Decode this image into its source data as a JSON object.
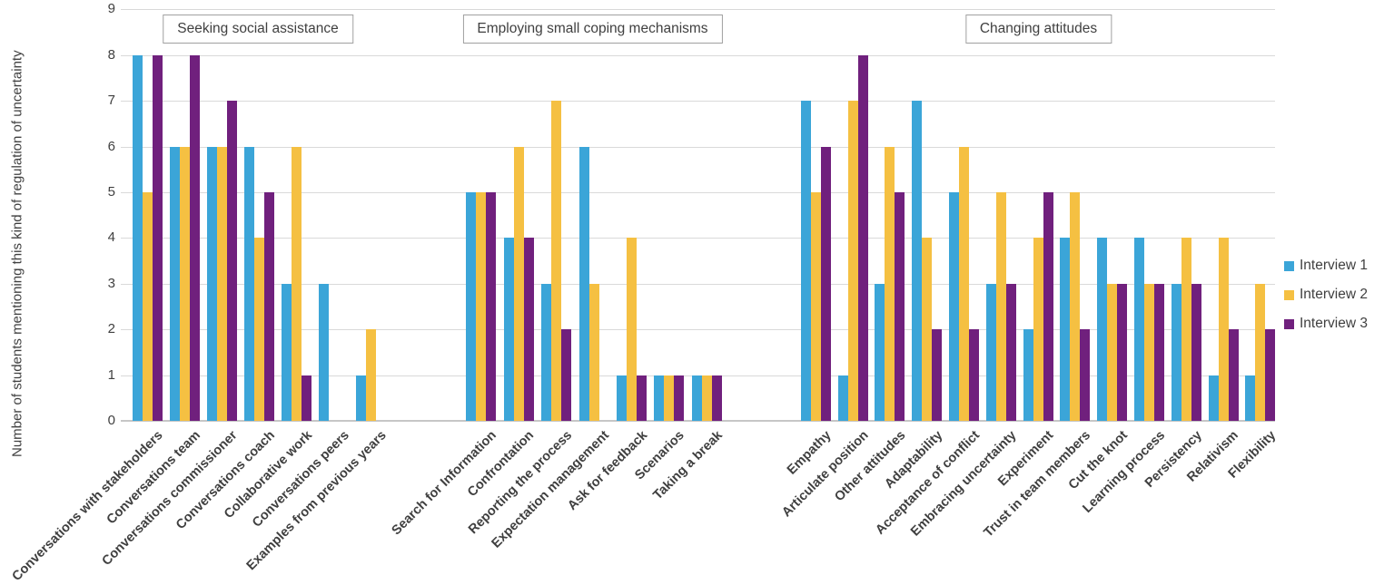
{
  "chart_data": {
    "type": "bar",
    "title": "",
    "ylabel": "Number of students mentioning this kind of regulation of uncertainty",
    "xlabel": "",
    "ylim": [
      0,
      9
    ],
    "yticks": [
      0,
      1,
      2,
      3,
      4,
      5,
      6,
      7,
      8,
      9
    ],
    "grid": true,
    "legend_position": "right",
    "series": [
      {
        "name": "Interview 1",
        "color": "#3BA5D8"
      },
      {
        "name": "Interview 2",
        "color": "#F5C042"
      },
      {
        "name": "Interview 3",
        "color": "#70207D"
      }
    ],
    "value_orientation": "values[categoryIndex] = [Interview 1, Interview 2, Interview 3]",
    "groups": [
      {
        "label": "Seeking social assistance",
        "categories": [
          "Conversations with stakeholders",
          "Conversations team",
          "Conversations commissioner",
          "Conversations coach",
          "Collaborative work",
          "Conversations peers",
          "Examples from previous years"
        ],
        "values": [
          [
            8,
            5,
            8
          ],
          [
            6,
            6,
            8
          ],
          [
            6,
            6,
            7
          ],
          [
            6,
            4,
            5
          ],
          [
            3,
            6,
            1
          ],
          [
            3,
            0,
            0
          ],
          [
            1,
            2,
            0
          ]
        ]
      },
      {
        "label": "Employing small coping mechanisms",
        "categories": [
          "Search for Information",
          "Confrontation",
          "Reporting the process",
          "Expectation management",
          "Ask for feedback",
          "Scenarios",
          "Taking a break"
        ],
        "values": [
          [
            5,
            5,
            5
          ],
          [
            4,
            6,
            4
          ],
          [
            3,
            7,
            2
          ],
          [
            6,
            3,
            0
          ],
          [
            1,
            4,
            1
          ],
          [
            1,
            1,
            1
          ],
          [
            1,
            1,
            1
          ]
        ]
      },
      {
        "label": "Changing attitudes",
        "categories": [
          "Empathy",
          "Articulate position",
          "Other attitudes",
          "Adaptability",
          "Acceptance of conflict",
          "Embracing uncertainty",
          "Experiment",
          "Trust in team members",
          "Cut the knot",
          "Learning process",
          "Persistency",
          "Relativism",
          "Flexibility"
        ],
        "values": [
          [
            7,
            5,
            6
          ],
          [
            1,
            7,
            8
          ],
          [
            3,
            6,
            5
          ],
          [
            7,
            4,
            2
          ],
          [
            5,
            6,
            2
          ],
          [
            3,
            5,
            3
          ],
          [
            2,
            4,
            5
          ],
          [
            4,
            5,
            2
          ],
          [
            4,
            3,
            3
          ],
          [
            4,
            3,
            3
          ],
          [
            3,
            4,
            3
          ],
          [
            1,
            4,
            2
          ],
          [
            1,
            3,
            2
          ]
        ]
      }
    ]
  }
}
